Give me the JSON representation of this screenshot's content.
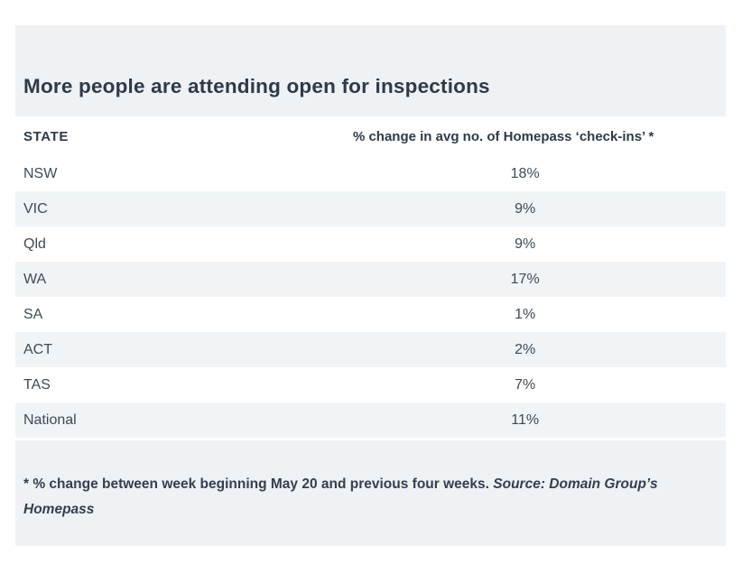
{
  "header": {
    "title": "More people are attending open for inspections"
  },
  "table": {
    "columns": {
      "state": "STATE",
      "value": "% change in avg no. of Homepass ‘check-ins’ *"
    },
    "rows": [
      {
        "state": "NSW",
        "value": "18%"
      },
      {
        "state": "VIC",
        "value": "9%"
      },
      {
        "state": "Qld",
        "value": "9%"
      },
      {
        "state": "WA",
        "value": "17%"
      },
      {
        "state": "SA",
        "value": "1%"
      },
      {
        "state": "ACT",
        "value": "2%"
      },
      {
        "state": "TAS",
        "value": "7%"
      },
      {
        "state": "National",
        "value": "11%"
      }
    ]
  },
  "footnote": {
    "note": "* % change between week beginning May 20 and previous four weeks. ",
    "source": "Source: Domain Group’s Homepass"
  },
  "colors": {
    "band_background": "#eff2f5",
    "row_stripe": "#f0f4f7",
    "heading_text": "#2e3a49",
    "body_text": "#3e4a57",
    "footnote_text": "#333f4d"
  },
  "chart_data": {
    "type": "table",
    "title": "More people are attending open for inspections",
    "columns": [
      "STATE",
      "% change in avg no. of Homepass ‘check-ins’ *"
    ],
    "categories": [
      "NSW",
      "VIC",
      "Qld",
      "WA",
      "SA",
      "ACT",
      "TAS",
      "National"
    ],
    "values": [
      18,
      9,
      9,
      17,
      1,
      2,
      7,
      11
    ],
    "value_unit": "%",
    "footnote": "* % change between week beginning May 20 and previous four weeks. Source: Domain Group’s Homepass"
  }
}
